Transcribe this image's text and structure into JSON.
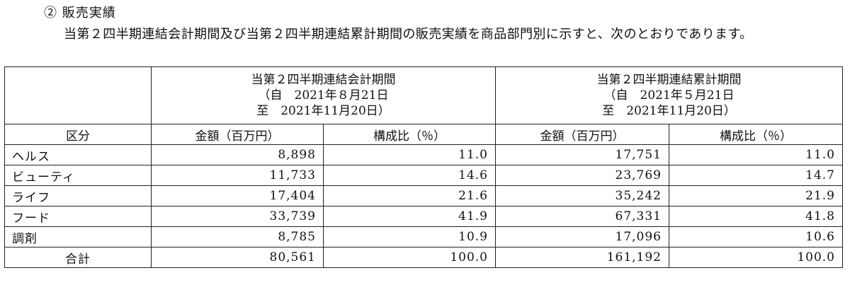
{
  "heading": "② 販売実績",
  "intro": "当第２四半期連結会計期間及び当第２四半期連結累計期間の販売実績を商品部門別に示すと、次のとおりであります。",
  "table": {
    "quarter_period": {
      "title": "当第２四半期連結会計期間",
      "from": "（自　2021年８月21日",
      "to": "至　2021年11月20日）"
    },
    "cumulative_period": {
      "title": "当第２四半期連結累計期間",
      "from": "（自　2021年５月21日",
      "to": "至　2021年11月20日）"
    },
    "headers": {
      "category": "区分",
      "amount": "金額（百万円）",
      "ratio": "構成比（％）",
      "amount_2": "金額（百万円）",
      "ratio_2": "構成比（％）"
    },
    "rows": [
      {
        "category": "ヘルス",
        "q_amount": "8,898",
        "q_ratio": "11.0",
        "c_amount": "17,751",
        "c_ratio": "11.0"
      },
      {
        "category": "ビューティ",
        "q_amount": "11,733",
        "q_ratio": "14.6",
        "c_amount": "23,769",
        "c_ratio": "14.7"
      },
      {
        "category": "ライフ",
        "q_amount": "17,404",
        "q_ratio": "21.6",
        "c_amount": "35,242",
        "c_ratio": "21.9"
      },
      {
        "category": "フード",
        "q_amount": "33,739",
        "q_ratio": "41.9",
        "c_amount": "67,331",
        "c_ratio": "41.8"
      },
      {
        "category": "調剤",
        "q_amount": "8,785",
        "q_ratio": "10.9",
        "c_amount": "17,096",
        "c_ratio": "10.6"
      }
    ],
    "total": {
      "category": "合計",
      "q_amount": "80,561",
      "q_ratio": "100.0",
      "c_amount": "161,192",
      "c_ratio": "100.0"
    }
  }
}
